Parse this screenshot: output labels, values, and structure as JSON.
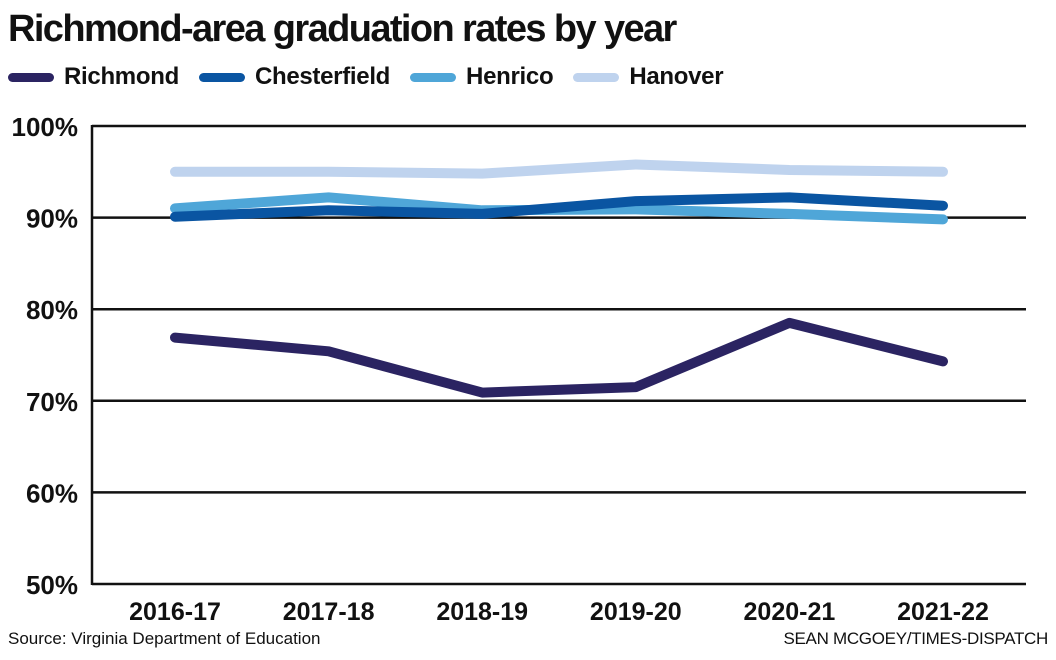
{
  "title": "Richmond-area graduation rates by year",
  "source": "Source: Virginia Department of Education",
  "credit": "SEAN MCGOEY/TIMES-DISPATCH",
  "chart_data": {
    "type": "line",
    "title": "Richmond-area graduation rates by year",
    "xlabel": "",
    "ylabel": "",
    "categories": [
      "2016-17",
      "2017-18",
      "2018-19",
      "2019-20",
      "2020-21",
      "2021-22"
    ],
    "ylim": [
      50,
      100
    ],
    "yticks": [
      50,
      60,
      70,
      80,
      90,
      100
    ],
    "ytick_labels": [
      "50%",
      "60%",
      "70%",
      "80%",
      "90%",
      "100%"
    ],
    "grid": "horizontal",
    "legend_position": "top-left",
    "series": [
      {
        "name": "Hanover",
        "color": "#bfd3ee",
        "values": [
          95.0,
          95.0,
          94.8,
          95.8,
          95.2,
          95.0
        ]
      },
      {
        "name": "Henrico",
        "color": "#4fa6d8",
        "values": [
          91.0,
          92.2,
          90.8,
          90.9,
          90.4,
          89.8
        ]
      },
      {
        "name": "Chesterfield",
        "color": "#0a55a2",
        "values": [
          90.1,
          90.8,
          90.4,
          91.8,
          92.2,
          91.3
        ]
      },
      {
        "name": "Richmond",
        "color": "#2b2462",
        "values": [
          76.9,
          75.4,
          70.9,
          71.5,
          78.5,
          74.3
        ]
      }
    ],
    "legend_order": [
      "Richmond",
      "Chesterfield",
      "Henrico",
      "Hanover"
    ]
  }
}
